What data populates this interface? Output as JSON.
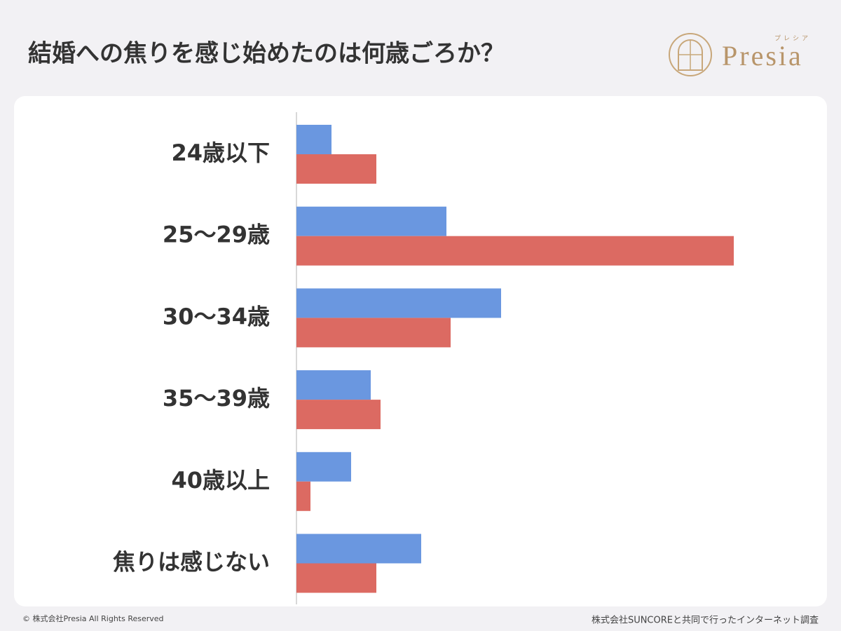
{
  "chart_data": {
    "type": "bar",
    "orientation": "horizontal",
    "title": "結婚への焦りを感じ始めたのは何歳ごろか？",
    "logo_text": "Presia",
    "logo_ruby": "プレシア",
    "copyright": "© 株式会社Presia All Rights Reserved",
    "source": "株式会社SUNCOREと共同で行ったインターネット調査",
    "categories": [
      "24歳以下",
      "25〜29歳",
      "30〜34歳",
      "35〜39歳",
      "40歳以上",
      "焦りは感じない"
    ],
    "series": [
      {
        "color": "#6a97e0",
        "values": [
          2.5,
          10.7,
          14.6,
          5.3,
          3.9,
          8.9
        ]
      },
      {
        "color": "#dc6a62",
        "values": [
          5.7,
          31.2,
          11.0,
          6.0,
          1.0,
          5.7
        ]
      }
    ],
    "xlim": [
      0,
      35
    ]
  }
}
